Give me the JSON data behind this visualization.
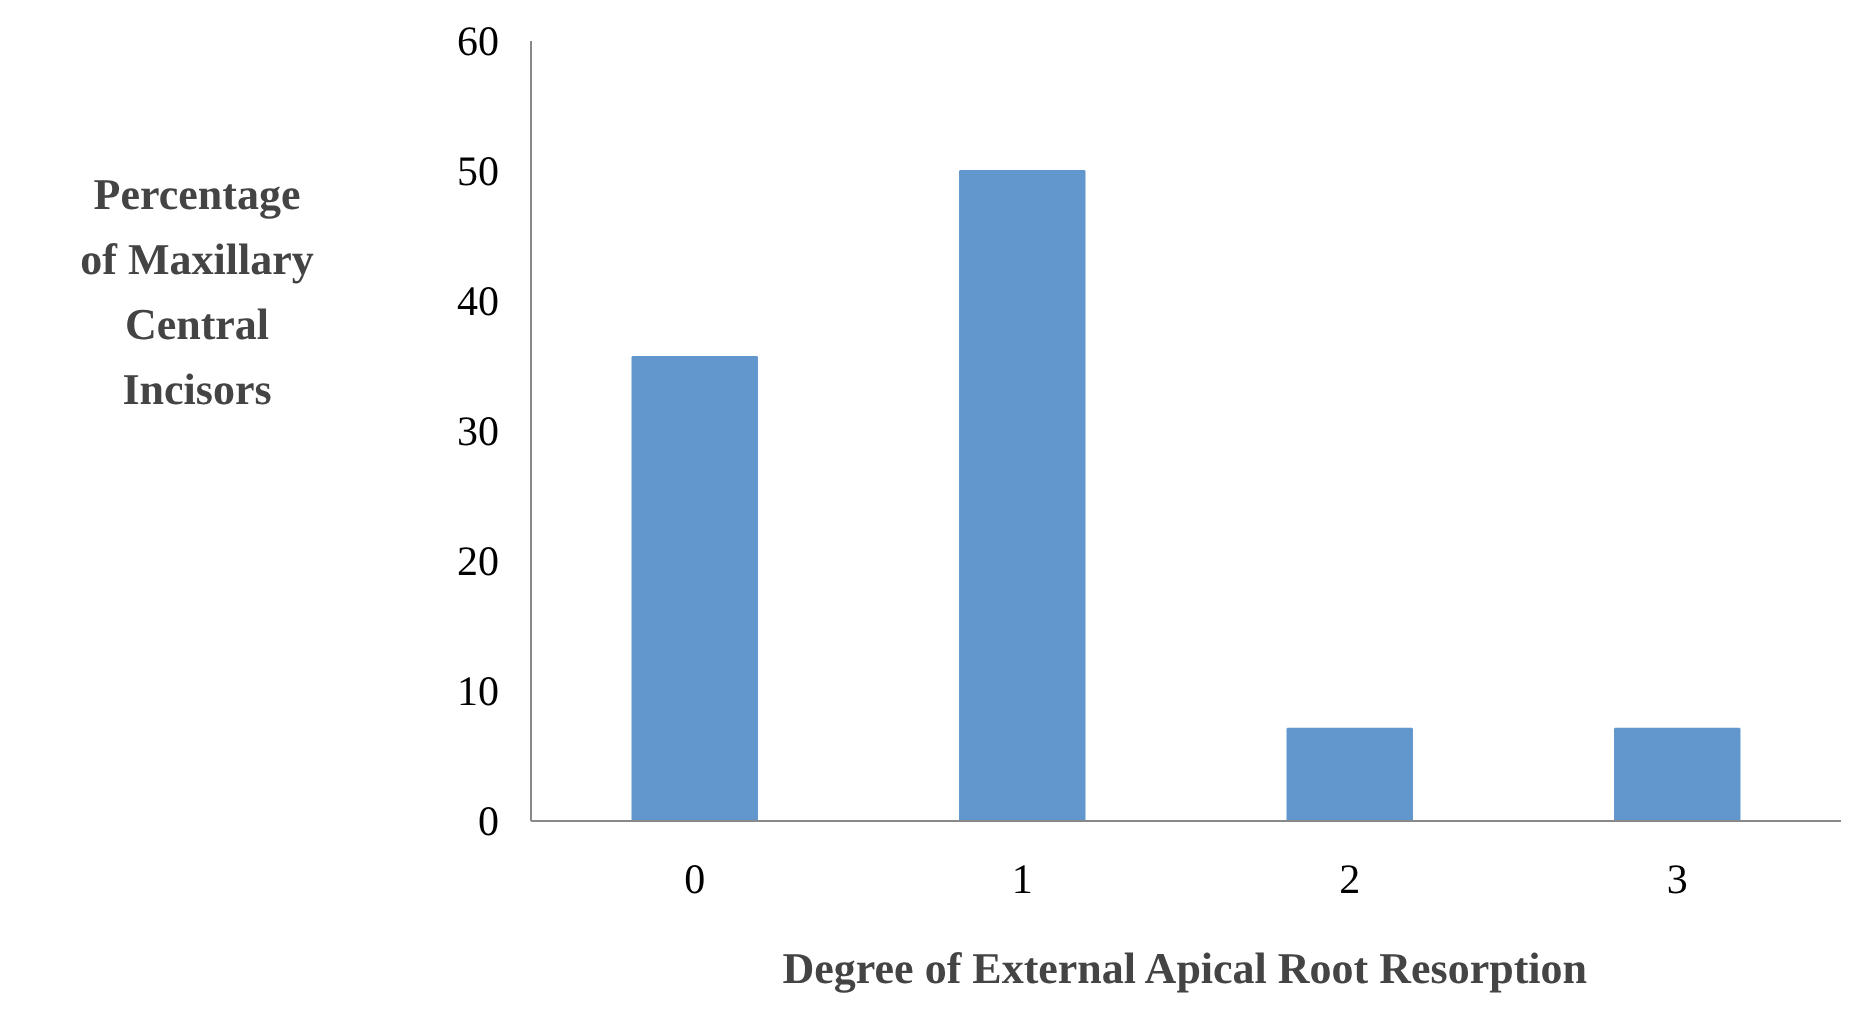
{
  "chart_data": {
    "type": "bar",
    "xlabel": "Degree of External Apical Root Resorption",
    "ylabel": "Percentage of Maxillary Central Incisors",
    "categories": [
      "0",
      "1",
      "2",
      "3"
    ],
    "values": [
      35.7,
      50,
      7.1,
      7.1
    ],
    "color": "#6197cc",
    "ylim": [
      0,
      60
    ],
    "yticks": [
      0,
      10,
      20,
      30,
      40,
      50,
      60
    ],
    "grid": false
  }
}
